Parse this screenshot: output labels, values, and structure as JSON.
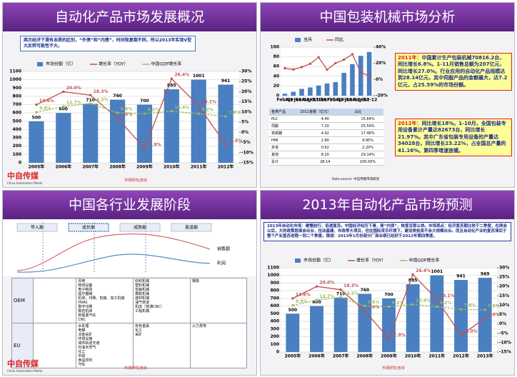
{
  "panels": [
    {
      "title": "自动化产品市场发展概况"
    },
    {
      "title": "中国包装机械市场分析"
    },
    {
      "title": "中国各行业发展阶段"
    },
    {
      "title": "2013年自动化产品市场预测"
    }
  ],
  "footer": {
    "brand": "中自传媒",
    "brand_en": "China Automation Media",
    "research": "市场研究|咨询"
  },
  "overview_note": "两次经济下滑有本质的区别，“外债”和“内债”，时间恢复期不同，所以2013年实现V型大反转可能性不大。",
  "packaging": {
    "text_2011_head": "2011年：",
    "text_2011": "中国累计生产包装机械70816.2台，同比增长6.8%。1-11月销售总额为207亿元，同比增长27.0%。行业应用的自动化产品规模达到28.14亿元，其中伺服产品的金额最大，达7.2亿元，占25.59%的市场份额。",
    "text_2012_head": "2012年：",
    "text_2012": "同比增长18%。1-10月，全国包装专用设备累计产量达82673台，同比增长21.97%。其中广东省包装专用设备的产量达34028台，同比增长23.22%，占全国总产量的41.16%。第四季增速放缓。",
    "table": {
      "header": [
        "各类产品",
        "2011金额（亿元）",
        "占比"
      ],
      "rows": [
        [
          "PLC",
          "4.40",
          "15.64%"
        ],
        [
          "伺服",
          "7.20",
          "25.59%"
        ],
        [
          "变频器",
          "4.92",
          "17.48%"
        ],
        [
          "HMI",
          "2.80",
          "9.95%"
        ],
        [
          "步进",
          "0.62",
          "2.20%"
        ],
        [
          "其他",
          "8.20",
          "29.14%"
        ],
        [
          "总计",
          "28.14",
          "100.00%"
        ]
      ]
    },
    "source": "Data source: 中自传媒市场研究"
  },
  "stages": {
    "phases": [
      "导入期",
      "成长期",
      "成熟期",
      "衰退期"
    ],
    "curves": [
      "销售额",
      "利润"
    ],
    "rows": [
      {
        "label": "OEM",
        "growth": [
          "风电",
          "物流设备",
          "电子制造",
          "医疗器械",
          "机床、印刷、包装、加工机械",
          "HVAC",
          "数字印刷",
          "数控机床",
          "新能源汽车",
          "CNC"
        ],
        "mature": [
          "纺织机械",
          "塑料机械",
          "包装机械",
          "橡胶机械",
          "建材机械",
          "油气管道",
          "机床（普通CNC）",
          "工程机械"
        ],
        "decline": [
          "钢铁"
        ]
      },
      {
        "label": "EU",
        "growth": [
          "水处理",
          "电梯",
          "冶金采矿",
          "环境设施",
          "城市轨道交通",
          "石油天然气",
          "化工",
          "市政",
          "食品饮料",
          "汽车"
        ],
        "mature": [
          "有色金属",
          "化工",
          "采矿"
        ],
        "decline": [
          "火力发电"
        ]
      }
    ]
  },
  "forecast_note": "2013年自动化市场：缓慢前行，低速复苏。中国经济经历下滑，是“内债”，恢复没那么快。市场观点：经济复苏期比较于二季度，在两会以后，大的政策层面会出台，拉动基建、市政等大项目，但在国际货币环境下，建设类投资不会大规模出台。而且自动化产业的复苏滞后于整个产业复苏进程一到二个季度。猜测：2013年1月份部分厂商业绩已经好于2012年第四季度。",
  "chart_data": [
    {
      "type": "bar",
      "categories": [
        "2005年",
        "2006年",
        "2007年",
        "2008年",
        "2009年",
        "2010年",
        "2011年",
        "2012年"
      ],
      "series": [
        {
          "name": "市场份额（亿）",
          "color": "#4a7fc1",
          "values": [
            500,
            600,
            710,
            760,
            700,
            885,
            1001,
            941
          ]
        },
        {
          "name": "增长率（YOY）",
          "color": "#c0504d",
          "type": "line",
          "axis": "y2",
          "values": [
            13.6,
            20.0,
            18.3,
            7.0,
            -7.9,
            26.4,
            13.1,
            -6.0
          ],
          "value_labels": [
            "13.6%",
            "20.0%",
            "18.3%",
            "7.0%",
            "-7.9%",
            "26.4%",
            "13.1%",
            "-6.0%"
          ]
        },
        {
          "name": "中国GDP增长率",
          "color": "#9bbb59",
          "type": "line",
          "axis": "y2",
          "values": [
            9.9,
            12.7,
            14.2,
            9.6,
            9.2,
            10.4,
            9.2,
            7.8
          ],
          "value_labels": [
            "9.9%",
            "12.7%",
            "14.2%",
            "9.6%",
            "9.2%",
            "10.4%",
            "9.2%",
            "7.8%"
          ]
        }
      ],
      "ylim": [
        0,
        1100
      ],
      "yticks": [
        0,
        100,
        200,
        300,
        400,
        500,
        600,
        700,
        800,
        900,
        1000,
        1100
      ],
      "y2lim": [
        -15,
        30
      ],
      "y2ticks": [
        {
          "value": -15,
          "label": "-15%"
        },
        {
          "value": -10,
          "label": "-10%"
        },
        {
          "value": -5,
          "label": "-5%"
        },
        {
          "value": 0,
          "label": "0%"
        },
        {
          "value": 5,
          "label": "5%"
        },
        {
          "value": 10,
          "label": "10%"
        },
        {
          "value": 15,
          "label": "15%"
        },
        {
          "value": 20,
          "label": "20%"
        },
        {
          "value": 25,
          "label": "25%"
        },
        {
          "value": 30,
          "label": "30%"
        }
      ],
      "bar_labels": true
    },
    {
      "type": "bar",
      "categories": [
        "Feb-11",
        "Apr-11",
        "Jun-11",
        "Aug-11",
        "Oct-11",
        "Dec-11",
        "Feb-12",
        "Apr-12",
        "Jun-12",
        "Aug-12",
        "Oct-12"
      ],
      "series": [
        {
          "name": "当月",
          "color": "#4a7fc1",
          "values": [
            4,
            8,
            14,
            17,
            21,
            25,
            28,
            47,
            65,
            82,
            90
          ]
        },
        {
          "name": "同比",
          "color": "#c0504d",
          "type": "line",
          "axis": "y2",
          "values": [
            13.9,
            12.4,
            15.3,
            19.4,
            27.4,
            12.2,
            20.1,
            24.5,
            31.2,
            8.7,
            4.3
          ]
        }
      ],
      "ylim": [
        0,
        100
      ],
      "yticks": [
        0,
        20,
        40,
        60,
        80,
        100
      ],
      "y2lim": [
        -20,
        40
      ],
      "y2ticks": [
        {
          "value": -20,
          "label": "-20%"
        },
        {
          "value": 0,
          "label": "0%"
        },
        {
          "value": 20,
          "label": "20%"
        },
        {
          "value": 40,
          "label": "40%"
        }
      ]
    },
    {
      "type": "bar",
      "categories": [
        "2005年",
        "2006年",
        "2007年",
        "2008年",
        "2009年",
        "2010年",
        "2011年",
        "2012年",
        "2013年"
      ],
      "series": [
        {
          "name": "市场份额（亿）",
          "color": "#4a7fc1",
          "values": [
            500,
            600,
            710,
            760,
            700,
            885,
            1001,
            941,
            969
          ]
        },
        {
          "name": "增长率（YOY）",
          "color": "#c0504d",
          "type": "line",
          "axis": "y2",
          "values": [
            13.6,
            20.0,
            18.3,
            7.0,
            -7.9,
            26.4,
            13.1,
            -6.0,
            3.0
          ],
          "value_labels": [
            "13.6%",
            "20.0%",
            "18.3%",
            "7.0%",
            "-7.9%",
            "26.4%",
            "13.1%",
            "-6.0%",
            "3.0%"
          ]
        },
        {
          "name": "中国GDP增长率",
          "color": "#9bbb59",
          "type": "line",
          "axis": "y2",
          "values": [
            9.9,
            12.7,
            14.2,
            9.6,
            9.2,
            10.4,
            9.2,
            7.8,
            7.5
          ],
          "value_labels": [
            "9.9%",
            "12.7%",
            "14.2%",
            "9.6%",
            "9.2%",
            "10.4%",
            "9.2%",
            "7.8%",
            "7.5%"
          ]
        }
      ],
      "ylim": [
        0,
        1100
      ],
      "yticks": [
        0,
        100,
        200,
        300,
        400,
        500,
        600,
        700,
        800,
        900,
        1000,
        1100
      ],
      "y2lim": [
        -15,
        30
      ],
      "y2ticks": [
        {
          "value": -15,
          "label": "-15%"
        },
        {
          "value": -10,
          "label": "-10%"
        },
        {
          "value": -5,
          "label": "-5%"
        },
        {
          "value": 0,
          "label": "0%"
        },
        {
          "value": 5,
          "label": "5%"
        },
        {
          "value": 10,
          "label": "10%"
        },
        {
          "value": 15,
          "label": "15%"
        },
        {
          "value": 20,
          "label": "20%"
        },
        {
          "value": 25,
          "label": "25%"
        },
        {
          "value": 30,
          "label": "30%"
        }
      ],
      "bar_labels": true
    }
  ]
}
